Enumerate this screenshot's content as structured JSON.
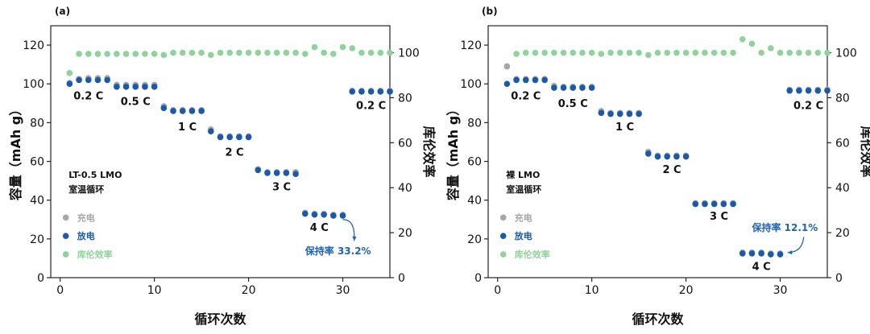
{
  "colors": {
    "charge": "#a6a6a6",
    "discharge": "#1a5aab",
    "efficiency": "#8ed49a",
    "axis": "#222222",
    "retention_text": "#1f63b5"
  },
  "chart_data": [
    {
      "type": "scatter",
      "panel_label": "(a)",
      "xlabel": "循环次数",
      "ylabel": "容量（mAh g）",
      "y2label": "库伦效率",
      "xlim": [
        -1,
        35
      ],
      "ylim": [
        0,
        130
      ],
      "y2lim": [
        0,
        112
      ],
      "xticks": [
        0,
        10,
        20,
        30
      ],
      "yticks": [
        0,
        20,
        40,
        60,
        80,
        100,
        120
      ],
      "y2ticks": [
        0,
        20,
        40,
        60,
        80,
        100
      ],
      "sample_title": [
        "LT-0.5 LMO",
        "室温循环"
      ],
      "legend": [
        "充电",
        "放电",
        "库伦效率"
      ],
      "rate_labels": [
        {
          "text": "0.2 C",
          "x": 3,
          "y": 92
        },
        {
          "text": "0.5 C",
          "x": 8,
          "y": 89
        },
        {
          "text": "1 C",
          "x": 13.5,
          "y": 76
        },
        {
          "text": "2 C",
          "x": 18.5,
          "y": 63
        },
        {
          "text": "3 C",
          "x": 23.5,
          "y": 45
        },
        {
          "text": "4 C",
          "x": 27.5,
          "y": 24
        },
        {
          "text": "0.2 C",
          "x": 33,
          "y": 87
        }
      ],
      "retention_label": {
        "text": "保持率 33.2%",
        "x": 29.5,
        "y": 12
      },
      "retention_arrow": {
        "from": [
          30,
          30
        ],
        "to": [
          31.2,
          19
        ]
      },
      "series": [
        {
          "name": "充电",
          "axis": "left",
          "x": [
            1,
            2,
            3,
            4,
            5,
            6,
            7,
            8,
            9,
            10,
            11,
            12,
            13,
            14,
            15,
            16,
            17,
            18,
            19,
            20,
            21,
            22,
            23,
            24,
            25,
            26,
            27,
            28,
            29,
            30,
            31,
            32,
            33,
            34,
            35
          ],
          "values": [
            100.5,
            102.5,
            103,
            103,
            103,
            99.5,
            99.5,
            99.5,
            99.5,
            99.5,
            88.5,
            86.5,
            86.5,
            86.5,
            86.5,
            76.5,
            73,
            73,
            73,
            73,
            56,
            54.5,
            54.5,
            54.5,
            54.5,
            33.5,
            33,
            33,
            32.5,
            32.5,
            96.5,
            96.5,
            96.5,
            96.5,
            96.5
          ]
        },
        {
          "name": "放电",
          "axis": "left",
          "x": [
            1,
            2,
            3,
            4,
            5,
            6,
            7,
            8,
            9,
            10,
            11,
            12,
            13,
            14,
            15,
            16,
            17,
            18,
            19,
            20,
            21,
            22,
            23,
            24,
            25,
            26,
            27,
            28,
            29,
            30,
            31,
            32,
            33,
            34,
            35
          ],
          "values": [
            100,
            102,
            102,
            102,
            102,
            98.5,
            98.5,
            98.5,
            98.5,
            98.5,
            87.5,
            86,
            86,
            86,
            86,
            75.5,
            72.5,
            72.5,
            72.5,
            72.5,
            55.5,
            54,
            54,
            54,
            53.5,
            33,
            32.5,
            32.5,
            32,
            32,
            96,
            96,
            96,
            96,
            96
          ]
        },
        {
          "name": "库伦效率",
          "axis": "right",
          "x": [
            1,
            2,
            3,
            4,
            5,
            6,
            7,
            8,
            9,
            10,
            11,
            12,
            13,
            14,
            15,
            16,
            17,
            18,
            19,
            20,
            21,
            22,
            23,
            24,
            25,
            26,
            27,
            28,
            29,
            30,
            31,
            32,
            33,
            34,
            35
          ],
          "values": [
            91,
            99.5,
            99.5,
            99.5,
            99.5,
            99.5,
            99.5,
            99.5,
            99.5,
            99.5,
            99,
            100,
            100,
            100,
            100,
            99,
            100,
            100,
            100,
            100,
            100,
            100,
            100,
            100,
            100,
            99.5,
            102.5,
            100,
            99.5,
            102.5,
            102,
            100,
            100,
            100,
            100
          ]
        }
      ]
    },
    {
      "type": "scatter",
      "panel_label": "(b)",
      "xlabel": "循环次数",
      "ylabel": "容量（mAh g）",
      "y2label": "库伦效率",
      "xlim": [
        -1,
        35
      ],
      "ylim": [
        0,
        130
      ],
      "y2lim": [
        0,
        112
      ],
      "xticks": [
        0,
        10,
        20,
        30
      ],
      "yticks": [
        0,
        20,
        40,
        60,
        80,
        100,
        120
      ],
      "y2ticks": [
        0,
        20,
        40,
        60,
        80,
        100
      ],
      "sample_title": [
        "裸 LMO",
        "室温循环"
      ],
      "legend": [
        "充电",
        "放电",
        "库伦效率"
      ],
      "rate_labels": [
        {
          "text": "0.2 C",
          "x": 3,
          "y": 92
        },
        {
          "text": "0.5 C",
          "x": 8,
          "y": 88
        },
        {
          "text": "1 C",
          "x": 13.5,
          "y": 76
        },
        {
          "text": "2 C",
          "x": 18.5,
          "y": 54
        },
        {
          "text": "3 C",
          "x": 23.5,
          "y": 30
        },
        {
          "text": "4 C",
          "x": 28,
          "y": 4
        },
        {
          "text": "0.2 C",
          "x": 33,
          "y": 87
        }
      ],
      "retention_label": {
        "text": "保持率 12.1%",
        "x": 30.5,
        "y": 24
      },
      "retention_arrow": {
        "from": [
          32.5,
          21
        ],
        "to": [
          30.8,
          13
        ]
      },
      "series": [
        {
          "name": "充电",
          "axis": "left",
          "x": [
            1,
            2,
            3,
            4,
            5,
            6,
            7,
            8,
            9,
            10,
            11,
            12,
            13,
            14,
            15,
            16,
            17,
            18,
            19,
            20,
            21,
            22,
            23,
            24,
            25,
            26,
            27,
            28,
            29,
            30,
            31,
            32,
            33,
            34,
            35
          ],
          "values": [
            109,
            102.5,
            102.5,
            102.5,
            102.5,
            99,
            98.5,
            98.5,
            98.5,
            98.5,
            86,
            85,
            85,
            85,
            85,
            65,
            63,
            63,
            63,
            63,
            38.5,
            38.5,
            38.5,
            38.5,
            38.5,
            13,
            13,
            13,
            12.5,
            12.5,
            97,
            97,
            97,
            97,
            97
          ]
        },
        {
          "name": "放电",
          "axis": "left",
          "x": [
            1,
            2,
            3,
            4,
            5,
            6,
            7,
            8,
            9,
            10,
            11,
            12,
            13,
            14,
            15,
            16,
            17,
            18,
            19,
            20,
            21,
            22,
            23,
            24,
            25,
            26,
            27,
            28,
            29,
            30,
            31,
            32,
            33,
            34,
            35
          ],
          "values": [
            100,
            102,
            102,
            102,
            102,
            98,
            98,
            98,
            98,
            98,
            85,
            84.5,
            84.5,
            84.5,
            84.5,
            64,
            62.5,
            62.5,
            62.5,
            62.5,
            38,
            38,
            38,
            38,
            38,
            12.5,
            12.5,
            12.5,
            12,
            12,
            96.5,
            96.5,
            96.5,
            96.5,
            96.5
          ]
        },
        {
          "name": "库伦效率",
          "axis": "right",
          "x": [
            1,
            2,
            3,
            4,
            5,
            6,
            7,
            8,
            9,
            10,
            11,
            12,
            13,
            14,
            15,
            16,
            17,
            18,
            19,
            20,
            21,
            22,
            23,
            24,
            25,
            26,
            27,
            28,
            29,
            30,
            31,
            32,
            33,
            34,
            35
          ],
          "values": [
            94,
            99.5,
            100,
            100,
            100,
            100,
            100,
            100,
            100,
            100,
            99.5,
            100,
            100,
            100,
            100,
            99,
            100,
            100,
            100,
            100,
            100,
            100,
            100,
            100,
            100,
            106,
            104,
            100,
            102,
            100,
            100,
            100,
            100,
            100,
            100
          ]
        }
      ]
    }
  ]
}
